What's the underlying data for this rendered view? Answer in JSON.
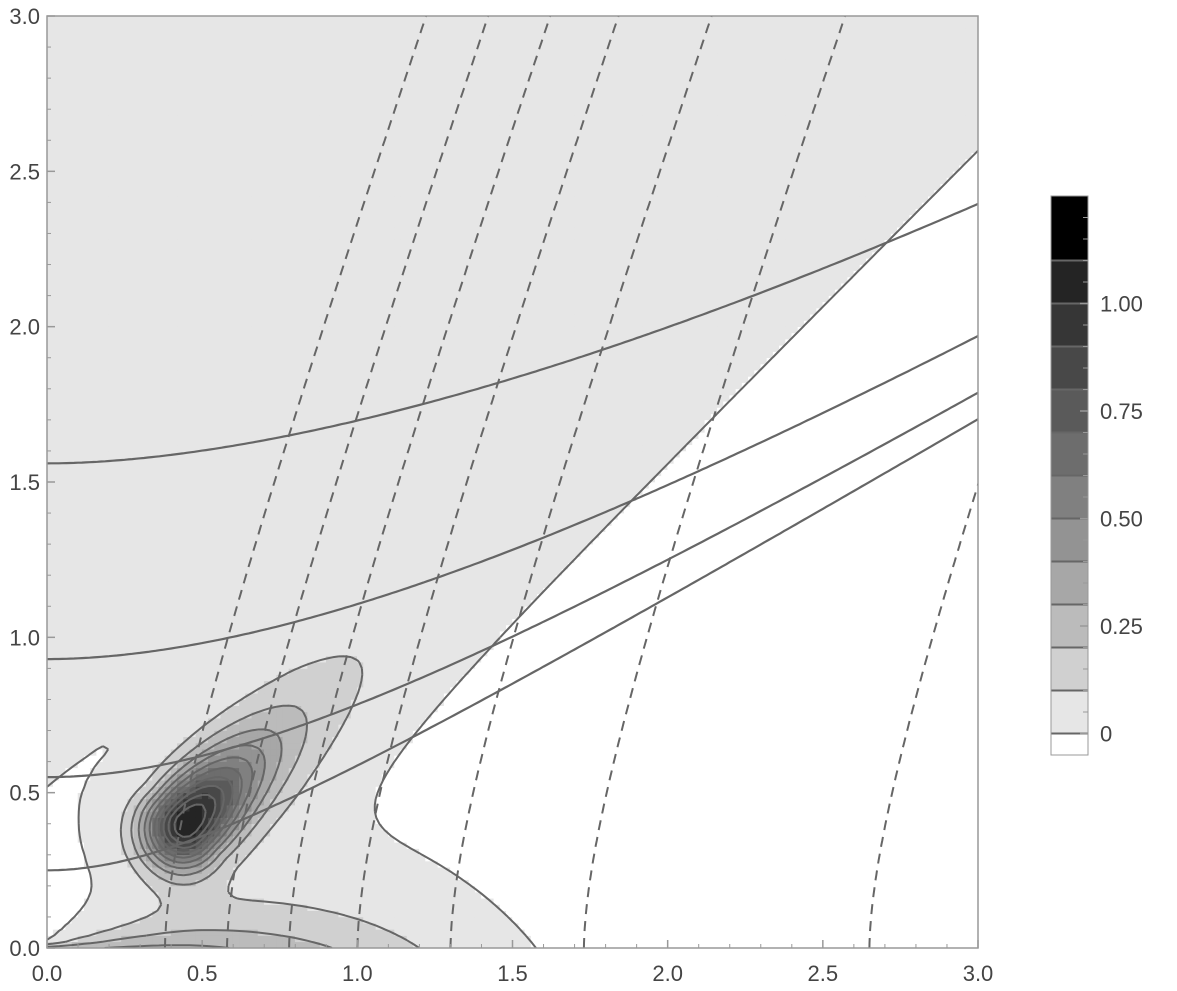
{
  "chart_data": {
    "type": "contour",
    "title": "",
    "xlabel": "",
    "ylabel": "",
    "xlim": [
      0,
      3
    ],
    "ylim": [
      0,
      3
    ],
    "x_ticks": [
      "0.0",
      "0.5",
      "1.0",
      "1.5",
      "2.0",
      "2.5",
      "3.0"
    ],
    "y_ticks": [
      "0.0",
      "0.5",
      "1.0",
      "1.5",
      "2.0",
      "2.5",
      "3.0"
    ],
    "grid": false,
    "shading": "grayscale, darker = higher value",
    "peak": {
      "x": 0.45,
      "y": 0.4,
      "value": 1.2
    },
    "contour_levels": [
      0,
      0.1,
      0.2,
      0.3,
      0.4,
      0.5,
      0.6,
      0.7,
      0.8,
      0.9,
      1.0,
      1.1
    ],
    "dashed_lines_x_at_y0": [
      0.38,
      0.58,
      0.78,
      1.0,
      1.3,
      1.73,
      2.65
    ],
    "solid_curves_y_at_x0": [
      0.25,
      0.55,
      0.93,
      1.56
    ],
    "colorbar": {
      "range": [
        -0.05,
        1.25
      ],
      "labels": [
        "0",
        "0.25",
        "0.50",
        "0.75",
        "1.00"
      ],
      "label_values": [
        0,
        0.25,
        0.5,
        0.75,
        1.0
      ],
      "placement": "right"
    }
  }
}
